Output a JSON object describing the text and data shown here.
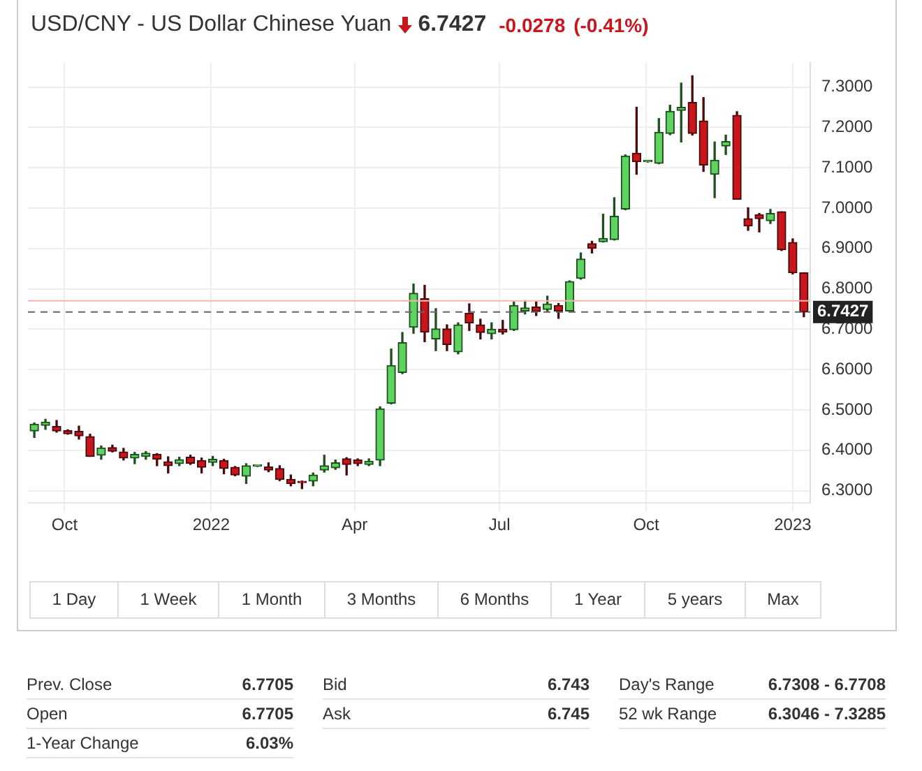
{
  "chart_data": {
    "type": "candlestick",
    "title": "USD/CNY - US Dollar Chinese Yuan",
    "x": [
      "2021-09-12",
      "2021-09-19",
      "2021-09-26",
      "2021-10-03",
      "2021-10-10",
      "2021-10-17",
      "2021-10-24",
      "2021-10-31",
      "2021-11-07",
      "2021-11-14",
      "2021-11-21",
      "2021-11-28",
      "2021-12-05",
      "2021-12-12",
      "2021-12-19",
      "2021-12-26",
      "2022-01-02",
      "2022-01-09",
      "2022-01-16",
      "2022-01-23",
      "2022-01-30",
      "2022-02-06",
      "2022-02-13",
      "2022-02-20",
      "2022-02-27",
      "2022-03-06",
      "2022-03-13",
      "2022-03-20",
      "2022-03-27",
      "2022-04-03",
      "2022-04-10",
      "2022-04-17",
      "2022-04-24",
      "2022-05-01",
      "2022-05-08",
      "2022-05-15",
      "2022-05-22",
      "2022-05-29",
      "2022-06-05",
      "2022-06-12",
      "2022-06-19",
      "2022-06-26",
      "2022-07-03",
      "2022-07-10",
      "2022-07-17",
      "2022-07-24",
      "2022-07-31",
      "2022-08-07",
      "2022-08-14",
      "2022-08-21",
      "2022-08-28",
      "2022-09-04",
      "2022-09-11",
      "2022-09-18",
      "2022-09-25",
      "2022-10-02",
      "2022-10-09",
      "2022-10-16",
      "2022-10-23",
      "2022-10-30",
      "2022-11-06",
      "2022-11-13",
      "2022-11-20",
      "2022-11-27",
      "2022-12-04",
      "2022-12-11",
      "2022-12-18",
      "2022-12-25",
      "2023-01-01",
      "2023-01-08"
    ],
    "ohlc": [
      [
        6.448,
        6.468,
        6.432,
        6.465
      ],
      [
        6.462,
        6.477,
        6.452,
        6.47
      ],
      [
        6.459,
        6.474,
        6.445,
        6.448
      ],
      [
        6.449,
        6.451,
        6.44,
        6.441
      ],
      [
        6.447,
        6.46,
        6.428,
        6.436
      ],
      [
        6.434,
        6.44,
        6.385,
        6.385
      ],
      [
        6.388,
        6.411,
        6.378,
        6.406
      ],
      [
        6.407,
        6.413,
        6.396,
        6.398
      ],
      [
        6.396,
        6.405,
        6.376,
        6.381
      ],
      [
        6.381,
        6.395,
        6.367,
        6.39
      ],
      [
        6.385,
        6.397,
        6.378,
        6.393
      ],
      [
        6.39,
        6.392,
        6.362,
        6.378
      ],
      [
        6.372,
        6.384,
        6.344,
        6.362
      ],
      [
        6.367,
        6.383,
        6.362,
        6.377
      ],
      [
        6.383,
        6.388,
        6.365,
        6.368
      ],
      [
        6.375,
        6.381,
        6.344,
        6.358
      ],
      [
        6.37,
        6.385,
        6.362,
        6.378
      ],
      [
        6.375,
        6.378,
        6.342,
        6.355
      ],
      [
        6.358,
        6.36,
        6.337,
        6.339
      ],
      [
        6.336,
        6.367,
        6.318,
        6.362
      ],
      [
        6.361,
        6.362,
        6.36,
        6.361
      ],
      [
        6.359,
        6.369,
        6.347,
        6.351
      ],
      [
        6.355,
        6.362,
        6.325,
        6.328
      ],
      [
        6.328,
        6.339,
        6.312,
        6.318
      ],
      [
        6.321,
        6.324,
        6.305,
        6.32
      ],
      [
        6.324,
        6.344,
        6.312,
        6.339
      ],
      [
        6.351,
        6.388,
        6.346,
        6.362
      ],
      [
        6.357,
        6.376,
        6.353,
        6.369
      ],
      [
        6.379,
        6.382,
        6.339,
        6.365
      ],
      [
        6.376,
        6.379,
        6.362,
        6.367
      ],
      [
        6.365,
        6.379,
        6.362,
        6.373
      ],
      [
        6.376,
        6.508,
        6.362,
        6.503
      ],
      [
        6.517,
        6.651,
        6.515,
        6.61
      ],
      [
        6.593,
        6.692,
        6.59,
        6.667
      ],
      [
        6.705,
        6.812,
        6.69,
        6.789
      ],
      [
        6.776,
        6.809,
        6.669,
        6.693
      ],
      [
        6.676,
        6.751,
        6.647,
        6.701
      ],
      [
        6.701,
        6.711,
        6.647,
        6.662
      ],
      [
        6.644,
        6.716,
        6.639,
        6.711
      ],
      [
        6.74,
        6.763,
        6.697,
        6.716
      ],
      [
        6.711,
        6.725,
        6.676,
        6.692
      ],
      [
        6.689,
        6.716,
        6.676,
        6.7
      ],
      [
        6.7,
        6.722,
        6.688,
        6.693
      ],
      [
        6.699,
        6.768,
        6.697,
        6.759
      ],
      [
        6.745,
        6.771,
        6.738,
        6.753
      ],
      [
        6.755,
        6.768,
        6.734,
        6.744
      ],
      [
        6.749,
        6.782,
        6.745,
        6.763
      ],
      [
        6.759,
        6.764,
        6.727,
        6.745
      ],
      [
        6.745,
        6.82,
        6.743,
        6.818
      ],
      [
        6.826,
        6.889,
        6.824,
        6.874
      ],
      [
        6.912,
        6.918,
        6.889,
        6.901
      ],
      [
        6.917,
        6.985,
        6.916,
        6.925
      ],
      [
        6.922,
        7.026,
        6.921,
        6.98
      ],
      [
        6.998,
        7.132,
        6.996,
        7.129
      ],
      [
        7.136,
        7.25,
        7.084,
        7.115
      ],
      [
        7.115,
        7.116,
        7.114,
        7.115
      ],
      [
        7.111,
        7.222,
        7.11,
        7.188
      ],
      [
        7.185,
        7.255,
        7.182,
        7.24
      ],
      [
        7.242,
        7.31,
        7.164,
        7.25
      ],
      [
        7.262,
        7.328,
        7.181,
        7.185
      ],
      [
        7.216,
        7.274,
        7.091,
        7.107
      ],
      [
        7.084,
        7.164,
        7.026,
        7.119
      ],
      [
        7.154,
        7.181,
        7.133,
        7.165
      ],
      [
        7.23,
        7.239,
        7.022,
        7.022
      ],
      [
        6.974,
        7.001,
        6.945,
        6.956
      ],
      [
        6.984,
        6.987,
        6.941,
        6.974
      ],
      [
        6.969,
        6.997,
        6.962,
        6.987
      ],
      [
        6.991,
        6.991,
        6.895,
        6.897
      ],
      [
        6.915,
        6.924,
        6.837,
        6.84
      ],
      [
        6.84,
        6.84,
        6.731,
        6.7427
      ]
    ],
    "xlim": [
      "2021-09-08",
      "2023-01-12"
    ],
    "xticks": [
      {
        "value": "2021-10-01",
        "label": "Oct"
      },
      {
        "value": "2022-01-01",
        "label": "2022"
      },
      {
        "value": "2022-04-01",
        "label": "Apr"
      },
      {
        "value": "2022-07-01",
        "label": "Jul"
      },
      {
        "value": "2022-10-01",
        "label": "Oct"
      },
      {
        "value": "2023-01-01",
        "label": "2023"
      }
    ],
    "ylim": [
      6.27,
      7.36
    ],
    "yticks": [
      {
        "value": 6.3,
        "label": "6.3000"
      },
      {
        "value": 6.4,
        "label": "6.4000"
      },
      {
        "value": 6.5,
        "label": "6.5000"
      },
      {
        "value": 6.6,
        "label": "6.6000"
      },
      {
        "value": 6.7,
        "label": "6.7000"
      },
      {
        "value": 6.8,
        "label": "6.8000"
      },
      {
        "value": 6.9,
        "label": "6.9000"
      },
      {
        "value": 7.0,
        "label": "7.0000"
      },
      {
        "value": 7.1,
        "label": "7.1000"
      },
      {
        "value": 7.2,
        "label": "7.2000"
      },
      {
        "value": 7.3,
        "label": "7.3000"
      }
    ],
    "grid": true,
    "legend": false,
    "ref_lines": [
      {
        "axis": "y",
        "value": 6.7705,
        "color": "#f2b8b0"
      },
      {
        "axis": "y",
        "value": 6.7427,
        "label": "6.7427",
        "color": "#666666",
        "line_style": "dashed"
      }
    ],
    "annotations": [
      "6.7427",
      "-0.0278",
      "(-0.41%)",
      "1 Day",
      "1 Week",
      "1 Month",
      "3 Months",
      "6 Months",
      "1 Year",
      "5 years",
      "Max",
      "Prev. Close",
      "6.7705",
      "Open",
      "6.7705",
      "1-Year Change",
      "6.03%",
      "Bid",
      "6.743",
      "Ask",
      "6.745",
      "Day's Range",
      "6.7308 - 6.7708",
      "52 wk Range",
      "6.3046 - 7.3285"
    ]
  }
}
